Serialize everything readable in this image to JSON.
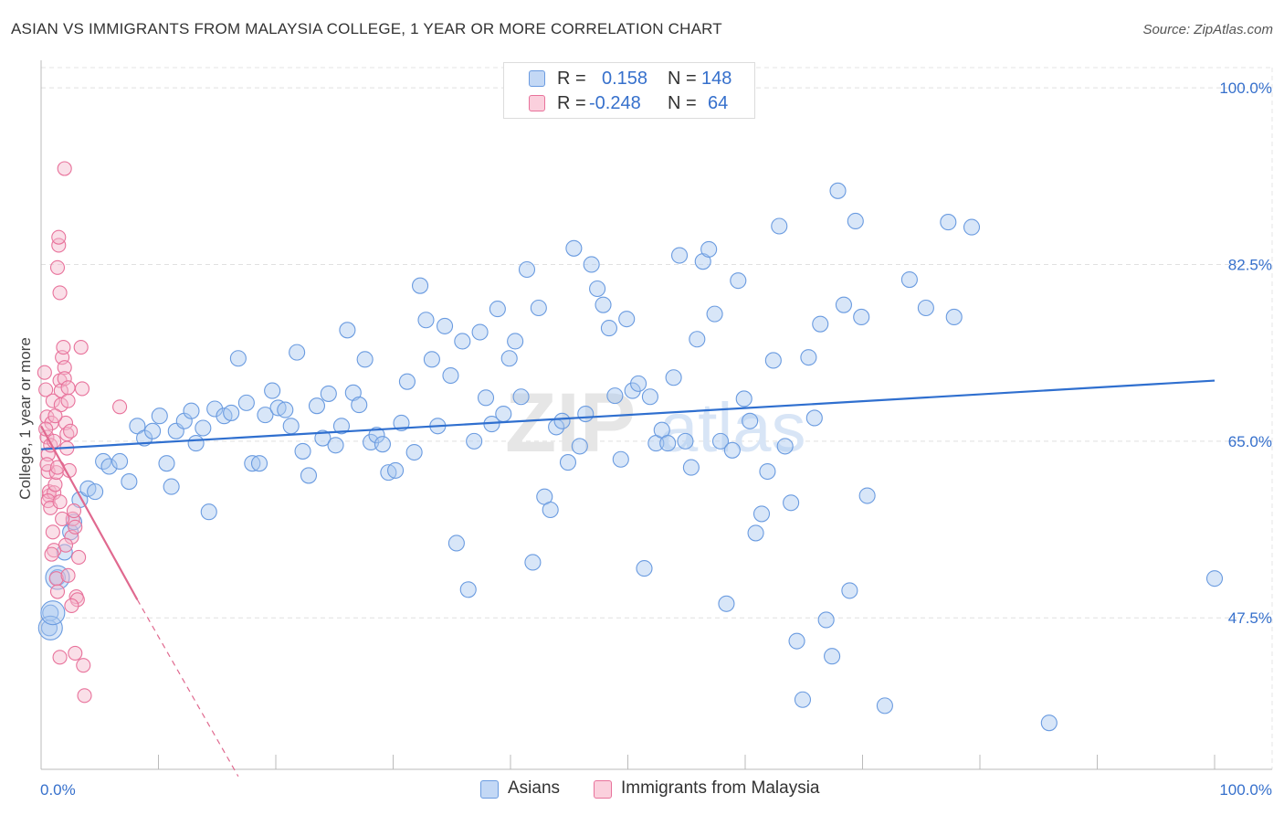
{
  "header": {
    "title": "ASIAN VS IMMIGRANTS FROM MALAYSIA COLLEGE, 1 YEAR OR MORE CORRELATION CHART",
    "source": "Source: ZipAtlas.com"
  },
  "watermark": {
    "text1": "ZIP",
    "text2": "atlas"
  },
  "stats": {
    "rows": [
      {
        "r_label": "R =",
        "r_value": "0.158",
        "n_label": "N =",
        "n_value": "148",
        "color": "#a9c7f0"
      },
      {
        "r_label": "R =",
        "r_value": "-0.248",
        "n_label": "N =",
        "n_value": "64",
        "color": "#f5b8cb"
      }
    ]
  },
  "legend": {
    "items": [
      {
        "label": "Asians",
        "color": "#a9c7f0"
      },
      {
        "label": "Immigrants from Malaysia",
        "color": "#f5b8cb"
      }
    ]
  },
  "chart_data": {
    "type": "scatter",
    "ylabel": "College, 1 year or more",
    "xlim": [
      0,
      100
    ],
    "ylim": [
      32.5,
      102
    ],
    "x_tick_labels": [
      "0.0%",
      "100.0%"
    ],
    "y_ticks": [
      47.5,
      65.0,
      82.5,
      100.0
    ],
    "y_tick_labels": [
      "47.5%",
      "65.0%",
      "82.5%",
      "100.0%"
    ],
    "grid": true,
    "colors": {
      "asians": "#6a9be0",
      "malaysia": "#e8729b",
      "asians_line": "#2f6fcf",
      "malaysia_line": "#e0698f",
      "axis_label": "#3670cc"
    },
    "series": [
      {
        "name": "Asians",
        "trend": {
          "x": [
            0,
            100
          ],
          "y": [
            64.2,
            71.0
          ]
        },
        "points": [
          [
            0.7,
            46.5
          ],
          [
            0.8,
            48.0
          ],
          [
            1.4,
            51.5
          ],
          [
            2.0,
            54.0
          ],
          [
            2.5,
            56.0
          ],
          [
            2.8,
            57.0
          ],
          [
            3.3,
            59.2
          ],
          [
            4.0,
            60.3
          ],
          [
            4.6,
            60.0
          ],
          [
            5.3,
            63.0
          ],
          [
            5.8,
            62.5
          ],
          [
            6.7,
            63.0
          ],
          [
            7.5,
            61.0
          ],
          [
            8.2,
            66.5
          ],
          [
            8.8,
            65.3
          ],
          [
            9.5,
            66.0
          ],
          [
            10.1,
            67.5
          ],
          [
            10.7,
            62.8
          ],
          [
            11.1,
            60.5
          ],
          [
            11.5,
            66.0
          ],
          [
            12.2,
            67.0
          ],
          [
            12.8,
            68.0
          ],
          [
            13.2,
            64.8
          ],
          [
            13.8,
            66.3
          ],
          [
            14.3,
            58.0
          ],
          [
            14.8,
            68.2
          ],
          [
            15.6,
            67.5
          ],
          [
            16.2,
            67.8
          ],
          [
            16.8,
            73.2
          ],
          [
            17.5,
            68.8
          ],
          [
            18.0,
            62.8
          ],
          [
            18.6,
            62.8
          ],
          [
            19.1,
            67.6
          ],
          [
            19.7,
            70.0
          ],
          [
            20.2,
            68.3
          ],
          [
            20.8,
            68.1
          ],
          [
            21.3,
            66.5
          ],
          [
            21.8,
            73.8
          ],
          [
            22.3,
            64.0
          ],
          [
            22.8,
            61.6
          ],
          [
            23.5,
            68.5
          ],
          [
            24.0,
            65.3
          ],
          [
            24.5,
            69.7
          ],
          [
            25.1,
            64.6
          ],
          [
            25.6,
            66.5
          ],
          [
            26.1,
            76.0
          ],
          [
            26.6,
            69.8
          ],
          [
            27.1,
            68.6
          ],
          [
            27.6,
            73.1
          ],
          [
            28.1,
            64.9
          ],
          [
            28.6,
            65.6
          ],
          [
            29.1,
            64.7
          ],
          [
            29.6,
            61.9
          ],
          [
            30.2,
            62.1
          ],
          [
            30.7,
            66.8
          ],
          [
            31.2,
            70.9
          ],
          [
            31.8,
            63.9
          ],
          [
            32.3,
            80.4
          ],
          [
            32.8,
            77.0
          ],
          [
            33.3,
            73.1
          ],
          [
            33.8,
            66.5
          ],
          [
            34.4,
            76.4
          ],
          [
            34.9,
            71.5
          ],
          [
            35.4,
            54.9
          ],
          [
            35.9,
            74.9
          ],
          [
            36.4,
            50.3
          ],
          [
            36.9,
            65.0
          ],
          [
            37.4,
            75.8
          ],
          [
            37.9,
            69.3
          ],
          [
            38.4,
            66.7
          ],
          [
            38.9,
            78.1
          ],
          [
            39.4,
            67.7
          ],
          [
            39.9,
            73.2
          ],
          [
            40.4,
            74.9
          ],
          [
            40.9,
            69.4
          ],
          [
            41.4,
            82.0
          ],
          [
            41.9,
            53.0
          ],
          [
            42.4,
            78.2
          ],
          [
            42.9,
            59.5
          ],
          [
            43.4,
            58.2
          ],
          [
            43.9,
            66.4
          ],
          [
            44.4,
            67.0
          ],
          [
            44.9,
            62.9
          ],
          [
            45.4,
            84.1
          ],
          [
            45.9,
            64.5
          ],
          [
            46.4,
            67.7
          ],
          [
            46.9,
            82.5
          ],
          [
            47.4,
            80.1
          ],
          [
            47.9,
            78.5
          ],
          [
            48.4,
            76.2
          ],
          [
            48.9,
            69.5
          ],
          [
            49.4,
            63.2
          ],
          [
            49.9,
            77.1
          ],
          [
            50.4,
            70.0
          ],
          [
            50.9,
            70.7
          ],
          [
            51.4,
            52.4
          ],
          [
            51.9,
            69.4
          ],
          [
            52.4,
            64.8
          ],
          [
            52.9,
            66.1
          ],
          [
            53.4,
            64.8
          ],
          [
            53.9,
            71.3
          ],
          [
            54.4,
            83.4
          ],
          [
            54.9,
            65.0
          ],
          [
            55.4,
            62.4
          ],
          [
            55.9,
            75.1
          ],
          [
            56.4,
            82.8
          ],
          [
            56.9,
            84.0
          ],
          [
            57.4,
            77.6
          ],
          [
            57.9,
            65.0
          ],
          [
            58.4,
            48.9
          ],
          [
            58.9,
            64.1
          ],
          [
            59.4,
            80.9
          ],
          [
            59.9,
            69.2
          ],
          [
            60.4,
            67.0
          ],
          [
            60.9,
            55.9
          ],
          [
            61.4,
            57.8
          ],
          [
            61.9,
            62.0
          ],
          [
            62.4,
            73.0
          ],
          [
            62.9,
            86.3
          ],
          [
            63.4,
            64.5
          ],
          [
            63.9,
            58.9
          ],
          [
            64.4,
            45.2
          ],
          [
            64.9,
            39.4
          ],
          [
            65.4,
            73.3
          ],
          [
            65.9,
            67.3
          ],
          [
            66.4,
            76.6
          ],
          [
            66.9,
            47.3
          ],
          [
            67.4,
            43.7
          ],
          [
            67.9,
            89.8
          ],
          [
            68.4,
            78.5
          ],
          [
            68.9,
            50.2
          ],
          [
            69.4,
            86.8
          ],
          [
            69.9,
            77.3
          ],
          [
            70.4,
            59.6
          ],
          [
            71.9,
            38.8
          ],
          [
            74.0,
            81.0
          ],
          [
            75.4,
            78.2
          ],
          [
            77.3,
            86.7
          ],
          [
            77.8,
            77.3
          ],
          [
            79.3,
            86.2
          ],
          [
            85.9,
            37.1
          ],
          [
            100.0,
            51.4
          ]
        ],
        "big_points": [
          [
            0.8,
            46.5
          ],
          [
            1.0,
            48.0
          ],
          [
            1.4,
            51.5
          ]
        ]
      },
      {
        "name": "Immigrants from Malaysia",
        "trend": {
          "x": [
            0,
            8.2
          ],
          "y": [
            66.5,
            49.3
          ]
        },
        "trend_dashed": {
          "x": [
            8.2,
            16.8
          ],
          "y": [
            49.3,
            31.8
          ]
        },
        "points": [
          [
            0.3,
            71.8
          ],
          [
            0.4,
            70.1
          ],
          [
            0.5,
            67.4
          ],
          [
            0.5,
            65.4
          ],
          [
            0.6,
            63.7
          ],
          [
            0.6,
            62.0
          ],
          [
            0.7,
            59.6
          ],
          [
            0.7,
            60.0
          ],
          [
            0.8,
            64.6
          ],
          [
            0.9,
            66.8
          ],
          [
            1.0,
            69.0
          ],
          [
            1.0,
            56.0
          ],
          [
            1.1,
            54.2
          ],
          [
            1.1,
            59.9
          ],
          [
            1.2,
            60.7
          ],
          [
            1.3,
            51.4
          ],
          [
            1.3,
            61.9
          ],
          [
            1.4,
            50.1
          ],
          [
            1.4,
            82.2
          ],
          [
            1.5,
            84.4
          ],
          [
            1.5,
            85.2
          ],
          [
            1.6,
            79.7
          ],
          [
            1.6,
            71.0
          ],
          [
            1.7,
            70.0
          ],
          [
            1.7,
            68.6
          ],
          [
            1.8,
            73.3
          ],
          [
            1.9,
            74.3
          ],
          [
            2.0,
            72.3
          ],
          [
            2.0,
            71.2
          ],
          [
            2.1,
            66.8
          ],
          [
            2.2,
            65.7
          ],
          [
            2.2,
            64.3
          ],
          [
            2.3,
            69.0
          ],
          [
            2.3,
            70.3
          ],
          [
            2.4,
            62.1
          ],
          [
            2.5,
            66.0
          ],
          [
            2.6,
            55.5
          ],
          [
            2.7,
            57.3
          ],
          [
            2.8,
            58.1
          ],
          [
            2.9,
            56.5
          ],
          [
            3.0,
            49.6
          ],
          [
            3.1,
            49.3
          ],
          [
            3.2,
            53.5
          ],
          [
            3.4,
            74.3
          ],
          [
            3.5,
            70.2
          ],
          [
            3.6,
            42.8
          ],
          [
            3.7,
            39.8
          ],
          [
            1.6,
            43.6
          ],
          [
            2.0,
            92.0
          ],
          [
            6.7,
            68.4
          ],
          [
            0.4,
            66.2
          ],
          [
            0.5,
            62.7
          ],
          [
            0.6,
            59.1
          ],
          [
            0.8,
            58.4
          ],
          [
            0.9,
            53.8
          ],
          [
            1.1,
            65.0
          ],
          [
            1.2,
            67.5
          ],
          [
            1.4,
            62.4
          ],
          [
            1.6,
            59.0
          ],
          [
            1.8,
            57.3
          ],
          [
            2.1,
            54.7
          ],
          [
            2.3,
            51.7
          ],
          [
            2.6,
            48.7
          ],
          [
            2.9,
            44.0
          ]
        ]
      }
    ]
  }
}
